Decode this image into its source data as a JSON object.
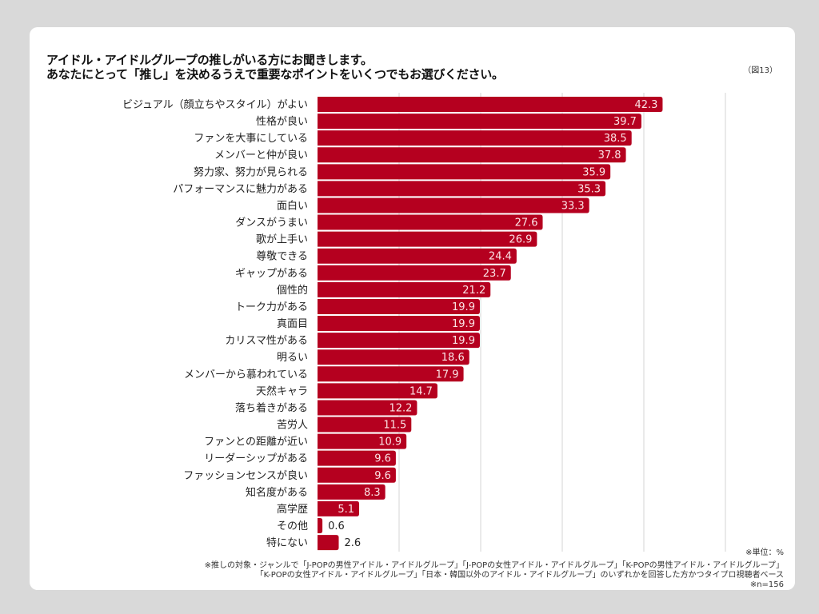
{
  "header": {
    "title_line1": "アイドル・アイドルグループの推しがいる方にお聞きします。",
    "title_line2": "あなたにとって「推し」を決めるうえで重要なポイントをいくつでもお選びください。",
    "figure_number": "（図13）"
  },
  "footer": {
    "unit": "※単位：%",
    "note_line1": "※推しの対象・ジャンルで「J-POPの男性アイドル・アイドルグループ」「J-POPの女性アイドル・アイドルグループ」「K-POPの男性アイドル・アイドルグループ」",
    "note_line2": "「K-POPの女性アイドル・アイドルグループ」「日本・韓国以外のアイドル・アイドルグループ」のいずれかを回答した方かつタイプロ視聴者ベース",
    "sample_size": "※n=156"
  },
  "colors": {
    "bar": "#b5001f",
    "grid": "#d6d6d6",
    "background": "#d9d9d9",
    "card": "#ffffff"
  },
  "chart_data": {
    "type": "bar",
    "orientation": "horizontal",
    "title": "アイドル・アイドルグループの推しがいる方にお聞きします。あなたにとって「推し」を決めるうえで重要なポイントをいくつでもお選びください。",
    "xlabel": "",
    "ylabel": "",
    "unit": "%",
    "xlim": [
      0,
      50
    ],
    "gridlines": [
      10,
      20,
      30,
      40,
      50
    ],
    "grid": true,
    "legend": "none",
    "categories": [
      "ビジュアル（顔立ちやスタイル）がよい",
      "性格が良い",
      "ファンを大事にしている",
      "メンバーと仲が良い",
      "努力家、努力が見られる",
      "パフォーマンスに魅力がある",
      "面白い",
      "ダンスがうまい",
      "歌が上手い",
      "尊敬できる",
      "ギャップがある",
      "個性的",
      "トーク力がある",
      "真面目",
      "カリスマ性がある",
      "明るい",
      "メンバーから慕われている",
      "天然キャラ",
      "落ち着きがある",
      "苦労人",
      "ファンとの距離が近い",
      "リーダーシップがある",
      "ファッションセンスが良い",
      "知名度がある",
      "高学歴",
      "その他",
      "特にない"
    ],
    "values": [
      42.3,
      39.7,
      38.5,
      37.8,
      35.9,
      35.3,
      33.3,
      27.6,
      26.9,
      24.4,
      23.7,
      21.2,
      19.9,
      19.9,
      19.9,
      18.6,
      17.9,
      14.7,
      12.2,
      11.5,
      10.9,
      9.6,
      9.6,
      8.3,
      5.1,
      0.6,
      2.6
    ],
    "value_labels": [
      "42.3",
      "39.7",
      "38.5",
      "37.8",
      "35.9",
      "35.3",
      "33.3",
      "27.6",
      "26.9",
      "24.4",
      "23.7",
      "21.2",
      "19.9",
      "19.9",
      "19.9",
      "18.6",
      "17.9",
      "14.7",
      "12.2",
      "11.5",
      "10.9",
      "9.6",
      "9.6",
      "8.3",
      "5.1",
      "0.6",
      "2.6"
    ]
  }
}
